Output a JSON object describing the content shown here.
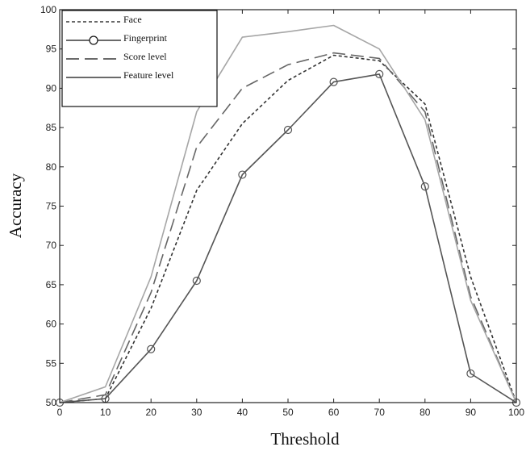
{
  "chart_data": {
    "type": "line",
    "title": "",
    "xlabel": "Threshold",
    "ylabel": "Accuracy",
    "xlim": [
      0,
      100
    ],
    "ylim": [
      50,
      100
    ],
    "xticks": [
      0,
      10,
      20,
      30,
      40,
      50,
      60,
      70,
      80,
      90,
      100
    ],
    "yticks": [
      50,
      55,
      60,
      65,
      70,
      75,
      80,
      85,
      90,
      95,
      100
    ],
    "grid": false,
    "legend_position": "top-left",
    "x": [
      0,
      10,
      20,
      30,
      40,
      50,
      60,
      70,
      80,
      90,
      100
    ],
    "series": [
      {
        "name": "Face",
        "style": "dotted",
        "color": "#333333",
        "marker": "none",
        "values": [
          50,
          50.5,
          62,
          77,
          85.5,
          91,
          94.2,
          93.5,
          88,
          66,
          50
        ]
      },
      {
        "name": "Fingerprint",
        "style": "solid",
        "color": "#555555",
        "marker": "circle",
        "values": [
          50,
          50.5,
          56.8,
          65.5,
          79,
          84.7,
          90.8,
          91.8,
          77.5,
          53.7,
          50
        ]
      },
      {
        "name": "Score level",
        "style": "dashed",
        "color": "#666666",
        "marker": "none",
        "values": [
          50,
          51,
          64,
          82.5,
          90,
          93,
          94.5,
          93.8,
          87,
          63.5,
          50
        ]
      },
      {
        "name": "Feature level",
        "style": "solid",
        "color": "#a6a6a6",
        "marker": "none",
        "values": [
          50,
          52,
          66,
          87,
          96.5,
          97.2,
          98,
          95,
          86,
          63,
          50
        ]
      }
    ]
  }
}
